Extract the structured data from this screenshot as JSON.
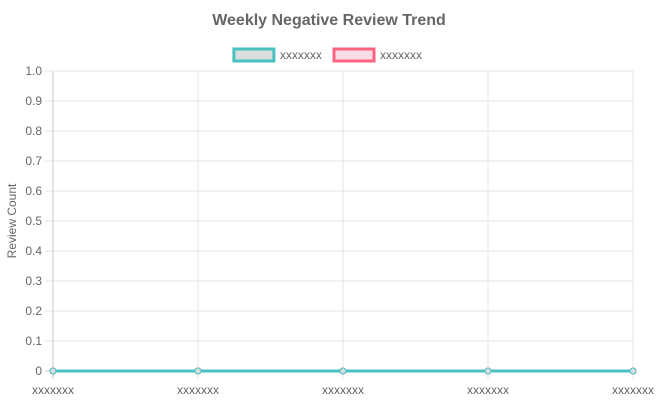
{
  "chart_data": {
    "type": "line",
    "title": "Weekly Negative Review Trend",
    "xlabel": "",
    "ylabel": "Review Count",
    "categories": [
      "xxxxxxx",
      "xxxxxxx",
      "xxxxxxx",
      "xxxxxxx",
      "xxxxxxx"
    ],
    "ylim": [
      0,
      1
    ],
    "yticks": [
      "0",
      "0.1",
      "0.2",
      "0.3",
      "0.4",
      "0.5",
      "0.6",
      "0.7",
      "0.8",
      "0.9",
      "1.0"
    ],
    "grid": true,
    "legend_position": "top",
    "series": [
      {
        "name": "xxxxxxx",
        "values": [
          0,
          0,
          0,
          0,
          0
        ],
        "color": "#4bc0c0",
        "fill": "#d9dede"
      },
      {
        "name": "xxxxxxx",
        "values": [
          0,
          0,
          0,
          0,
          0
        ],
        "color": "#ff6384",
        "fill": "#f5dfe4"
      }
    ]
  }
}
